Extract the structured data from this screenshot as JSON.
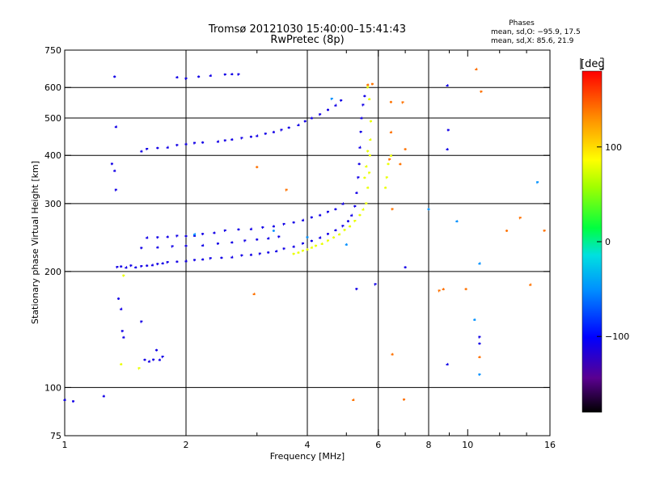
{
  "chart_data": {
    "type": "scatter",
    "title": "Tromsø 20121030 15:40:00–15:41:43",
    "subtitle": "RwPretec (8p)",
    "xlabel": "Frequency [MHz]",
    "ylabel": "Stationary phase Virtual Height [km]",
    "x_scale": "log",
    "y_scale": "log",
    "xlim": [
      1,
      16
    ],
    "ylim": [
      75,
      750
    ],
    "x_ticks": [
      1,
      2,
      4,
      6,
      8,
      10,
      16
    ],
    "x_tick_labels": [
      "1",
      "2",
      "4",
      "6",
      "8",
      "10",
      "16"
    ],
    "y_ticks": [
      75,
      100,
      200,
      300,
      400,
      500,
      600,
      750
    ],
    "y_tick_labels": [
      "75",
      "100",
      "200",
      "300",
      "400",
      "500",
      "600",
      "750"
    ],
    "x_gridlines": [
      2,
      4,
      6,
      8
    ],
    "y_gridlines": [
      100,
      200,
      300,
      400,
      500,
      600
    ],
    "x_minor_ticks": [
      3,
      5,
      7,
      9,
      12,
      14
    ],
    "stats": {
      "heading": "Phases",
      "line_o": "mean, sd,O: −95.9, 17.5",
      "line_x": "mean, sd,X:  85.6, 21.9"
    },
    "colorbar": {
      "label": "[deg",
      "range": [
        -180,
        180
      ],
      "ticks": [
        100,
        0,
        -100
      ],
      "tick_labels": [
        "100",
        "0",
        "−100"
      ]
    },
    "series": [
      {
        "description_color": "blue",
        "phase": -110,
        "points": [
          [
            1.35,
            205
          ],
          [
            1.38,
            206
          ],
          [
            1.42,
            205
          ],
          [
            1.46,
            207
          ],
          [
            1.5,
            205
          ],
          [
            1.55,
            206
          ],
          [
            1.6,
            207
          ],
          [
            1.65,
            208
          ],
          [
            1.7,
            209
          ],
          [
            1.75,
            210
          ],
          [
            1.8,
            211
          ],
          [
            1.9,
            212
          ],
          [
            2.0,
            213
          ],
          [
            2.1,
            214
          ],
          [
            2.2,
            215
          ],
          [
            2.3,
            216
          ],
          [
            2.45,
            217
          ],
          [
            2.6,
            218
          ],
          [
            2.75,
            220
          ],
          [
            2.9,
            221
          ],
          [
            3.05,
            222
          ],
          [
            3.2,
            224
          ],
          [
            3.35,
            226
          ],
          [
            3.5,
            229
          ],
          [
            3.7,
            232
          ],
          [
            3.9,
            236
          ],
          [
            4.1,
            240
          ],
          [
            4.3,
            245
          ],
          [
            4.5,
            250
          ],
          [
            4.7,
            256
          ],
          [
            4.9,
            262
          ],
          [
            5.05,
            270
          ],
          [
            5.15,
            280
          ],
          [
            5.25,
            295
          ],
          [
            5.3,
            320
          ],
          [
            5.35,
            350
          ],
          [
            5.38,
            380
          ],
          [
            5.4,
            420
          ],
          [
            5.43,
            460
          ],
          [
            5.45,
            500
          ],
          [
            5.5,
            540
          ],
          [
            5.55,
            570
          ],
          [
            1.6,
            245
          ],
          [
            1.7,
            245
          ],
          [
            1.8,
            246
          ],
          [
            1.9,
            247
          ],
          [
            2.0,
            247
          ],
          [
            2.1,
            248
          ],
          [
            2.2,
            250
          ],
          [
            2.35,
            252
          ],
          [
            2.5,
            255
          ],
          [
            2.7,
            257
          ],
          [
            2.9,
            258
          ],
          [
            3.1,
            260
          ],
          [
            3.3,
            262
          ],
          [
            3.5,
            265
          ],
          [
            3.7,
            268
          ],
          [
            3.9,
            272
          ],
          [
            4.1,
            276
          ],
          [
            4.3,
            280
          ],
          [
            4.5,
            285
          ],
          [
            4.7,
            290
          ],
          [
            4.9,
            300
          ],
          [
            1.55,
            230
          ],
          [
            1.7,
            231
          ],
          [
            1.85,
            232
          ],
          [
            2.0,
            233
          ],
          [
            2.2,
            234
          ],
          [
            2.4,
            236
          ],
          [
            2.6,
            238
          ],
          [
            2.8,
            240
          ],
          [
            3.0,
            242
          ],
          [
            3.2,
            244
          ],
          [
            3.4,
            246
          ],
          [
            1.55,
            410
          ],
          [
            1.6,
            415
          ],
          [
            1.7,
            418
          ],
          [
            1.8,
            420
          ],
          [
            1.9,
            425
          ],
          [
            2.0,
            428
          ],
          [
            2.1,
            430
          ],
          [
            2.2,
            432
          ],
          [
            2.4,
            435
          ],
          [
            2.5,
            437
          ],
          [
            2.6,
            440
          ],
          [
            2.75,
            443
          ],
          [
            2.9,
            447
          ],
          [
            3.0,
            450
          ],
          [
            3.15,
            455
          ],
          [
            3.3,
            460
          ],
          [
            3.45,
            465
          ],
          [
            3.6,
            472
          ],
          [
            3.8,
            480
          ],
          [
            3.95,
            490
          ],
          [
            4.1,
            500
          ],
          [
            4.3,
            510
          ],
          [
            4.5,
            525
          ],
          [
            4.7,
            540
          ],
          [
            4.85,
            555
          ],
          [
            1.9,
            638
          ],
          [
            2.0,
            632
          ],
          [
            2.15,
            640
          ],
          [
            2.3,
            645
          ],
          [
            2.5,
            648
          ],
          [
            2.6,
            650
          ],
          [
            2.7,
            648
          ],
          [
            1.33,
            640
          ],
          [
            1.34,
            475
          ],
          [
            1.31,
            380
          ],
          [
            1.33,
            365
          ],
          [
            1.34,
            325
          ],
          [
            1.36,
            170
          ],
          [
            1.38,
            160
          ],
          [
            1.39,
            140
          ],
          [
            1.4,
            135
          ],
          [
            1.55,
            148
          ],
          [
            1.58,
            118
          ],
          [
            1.62,
            117
          ],
          [
            1.66,
            118
          ],
          [
            1.72,
            118
          ],
          [
            1.75,
            120
          ],
          [
            1.69,
            125
          ],
          [
            1.0,
            93
          ],
          [
            1.05,
            92
          ],
          [
            1.25,
            95
          ],
          [
            5.9,
            185
          ],
          [
            7.0,
            205
          ],
          [
            8.9,
            608
          ],
          [
            8.95,
            465
          ],
          [
            8.9,
            415
          ],
          [
            10.7,
            135
          ],
          [
            10.7,
            130
          ],
          [
            8.9,
            115
          ],
          [
            5.3,
            180
          ]
        ]
      },
      {
        "description_color": "yellow-green",
        "phase": 80,
        "points": [
          [
            3.7,
            222
          ],
          [
            3.8,
            224
          ],
          [
            3.9,
            226
          ],
          [
            4.0,
            228
          ],
          [
            4.1,
            231
          ],
          [
            4.2,
            233
          ],
          [
            4.35,
            236
          ],
          [
            4.5,
            240
          ],
          [
            4.65,
            245
          ],
          [
            4.8,
            250
          ],
          [
            4.95,
            256
          ],
          [
            5.1,
            262
          ],
          [
            5.25,
            270
          ],
          [
            5.4,
            280
          ],
          [
            5.5,
            290
          ],
          [
            5.6,
            300
          ],
          [
            5.65,
            330
          ],
          [
            5.7,
            360
          ],
          [
            5.72,
            400
          ],
          [
            5.73,
            440
          ],
          [
            5.75,
            490
          ],
          [
            5.7,
            560
          ],
          [
            5.65,
            600
          ],
          [
            5.55,
            350
          ],
          [
            5.6,
            375
          ],
          [
            5.65,
            410
          ],
          [
            6.25,
            330
          ],
          [
            6.3,
            350
          ],
          [
            6.35,
            380
          ],
          [
            6.45,
            400
          ],
          [
            1.4,
            195
          ],
          [
            1.38,
            115
          ],
          [
            1.53,
            112
          ]
        ]
      },
      {
        "description_color": "orange-red",
        "phase": 140,
        "points": [
          [
            6.45,
            550
          ],
          [
            6.45,
            460
          ],
          [
            6.5,
            290
          ],
          [
            6.5,
            122
          ],
          [
            6.9,
            548
          ],
          [
            7.0,
            415
          ],
          [
            5.2,
            93
          ],
          [
            6.95,
            93
          ],
          [
            8.7,
            180
          ],
          [
            8.5,
            178
          ],
          [
            9.9,
            180
          ],
          [
            10.5,
            670
          ],
          [
            10.8,
            585
          ],
          [
            10.7,
            120
          ],
          [
            13.5,
            275
          ],
          [
            12.5,
            255
          ],
          [
            14.3,
            185
          ],
          [
            15.5,
            255
          ],
          [
            5.65,
            610
          ],
          [
            3.55,
            325
          ],
          [
            3.0,
            373
          ],
          [
            2.95,
            175
          ],
          [
            5.8,
            612
          ],
          [
            6.8,
            380
          ],
          [
            6.4,
            390
          ]
        ]
      },
      {
        "description_color": "cyan",
        "phase": -50,
        "points": [
          [
            5.0,
            235
          ],
          [
            4.6,
            560
          ],
          [
            8.0,
            290
          ],
          [
            10.7,
            210
          ],
          [
            10.7,
            108
          ],
          [
            10.4,
            150
          ],
          [
            14.9,
            340
          ],
          [
            3.3,
            255
          ],
          [
            2.1,
            250
          ],
          [
            4.0,
            245
          ],
          [
            9.4,
            270
          ]
        ]
      }
    ]
  }
}
